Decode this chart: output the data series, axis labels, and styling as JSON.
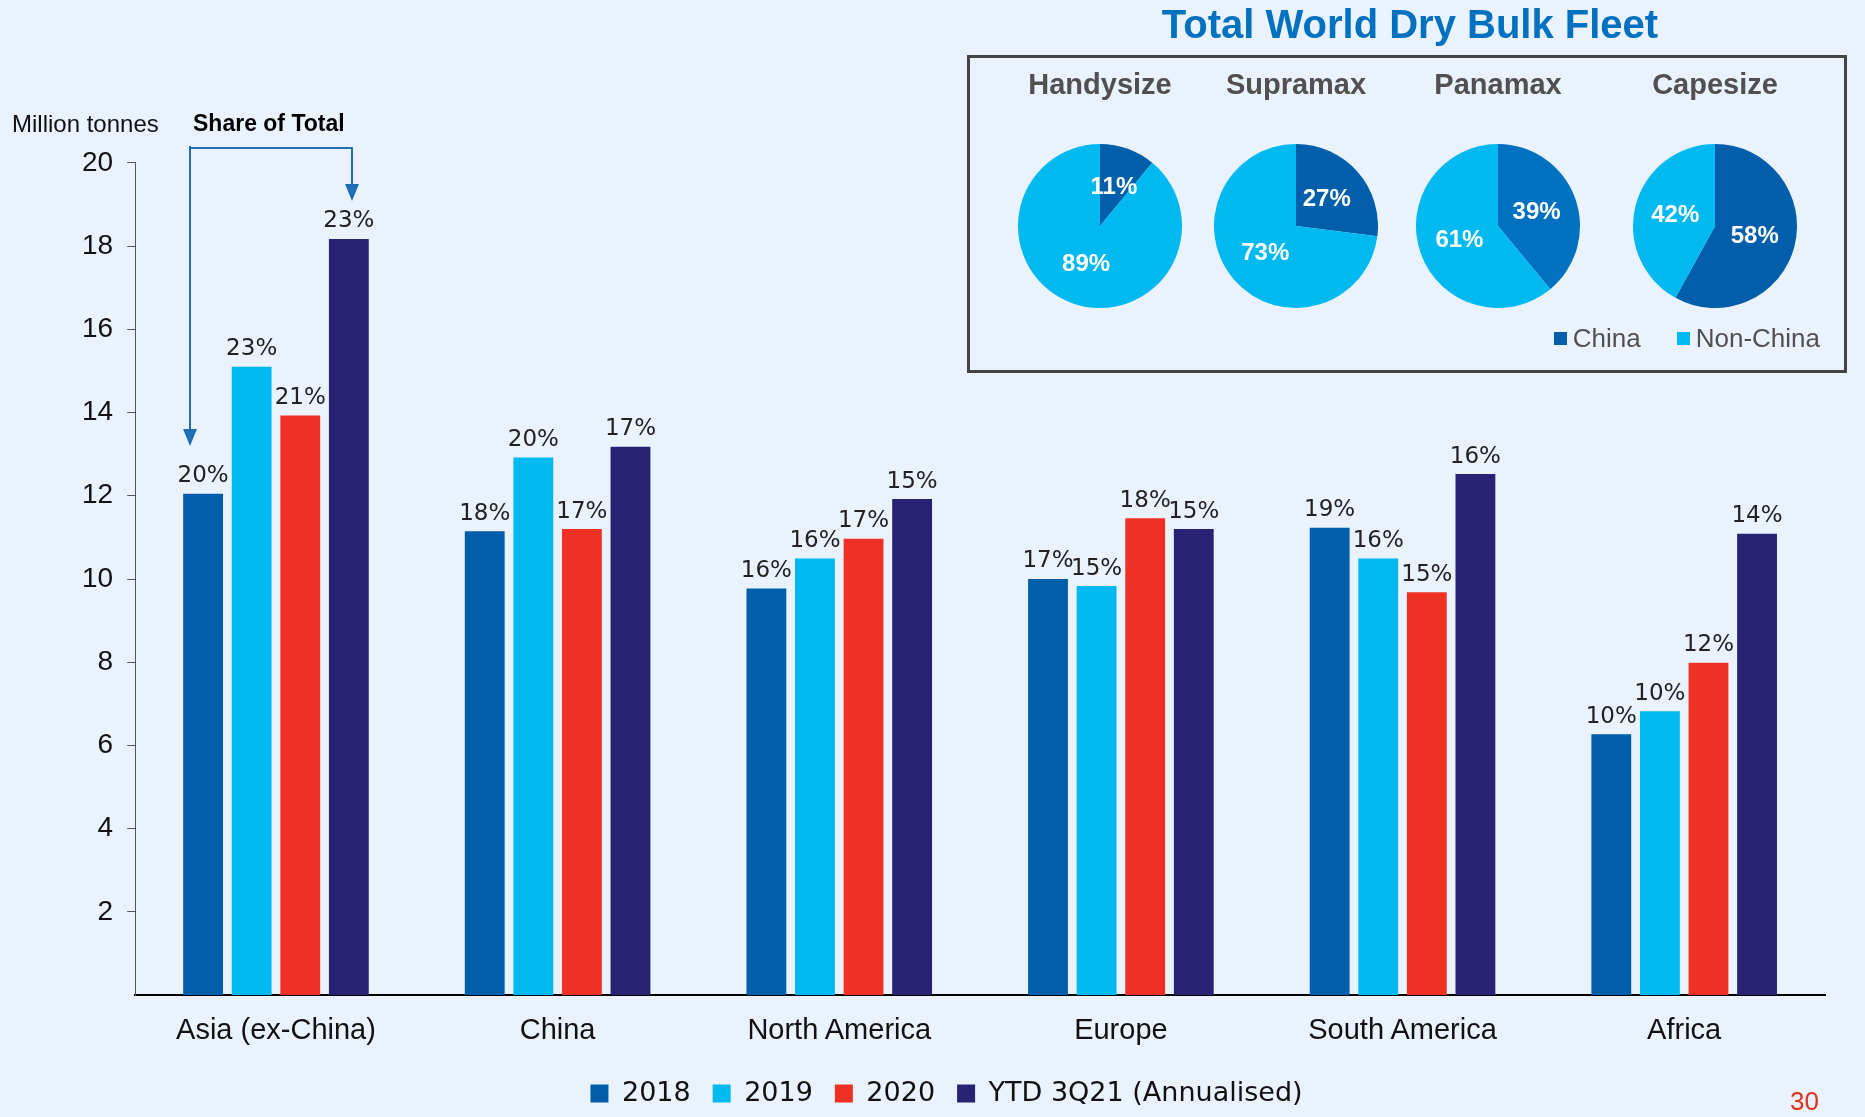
{
  "chart_data": [
    {
      "type": "bar",
      "ylabel": "Million tonnes",
      "categories": [
        "Asia (ex-China)",
        "China",
        "North America",
        "Europe",
        "South America",
        "Africa"
      ],
      "ylim": [
        0,
        20
      ],
      "yticks": [
        2,
        4,
        6,
        8,
        10,
        12,
        14,
        16,
        18,
        20
      ],
      "grid": false,
      "legend": "bottom",
      "series": [
        {
          "name": "2018",
          "color": "#005eab",
          "values": [
            12.05,
            11.15,
            9.77,
            10.0,
            11.23,
            6.27
          ]
        },
        {
          "name": "2019",
          "color": "#00b9f0",
          "values": [
            15.1,
            12.92,
            10.49,
            9.83,
            10.49,
            6.82
          ]
        },
        {
          "name": "2020",
          "color": "#ee3124",
          "values": [
            13.93,
            11.2,
            10.97,
            11.46,
            9.68,
            7.99
          ]
        },
        {
          "name": "YTD 3Q21 (Annualised)",
          "color": "#272274",
          "values": [
            18.17,
            13.18,
            11.92,
            11.2,
            12.52,
            11.09
          ]
        }
      ],
      "annotations": [
        "Share of Total",
        "30",
        "20%",
        "23%",
        "21%",
        "23%",
        "18%",
        "20%",
        "17%",
        "17%",
        "16%",
        "16%",
        "17%",
        "15%",
        "17%",
        "15%",
        "18%",
        "15%",
        "19%",
        "16%",
        "15%",
        "16%",
        "10%",
        "10%",
        "12%",
        "14%"
      ]
    },
    {
      "type": "other",
      "title": "Total World Dry Bulk Fleet"
    },
    {
      "type": "pie",
      "title": "Handysize",
      "categories": [
        "China",
        "Non-China"
      ],
      "values": [
        11,
        89
      ],
      "colors": [
        "#005eab",
        "#00b9f0"
      ],
      "value_labels": [
        "11%",
        "89%"
      ],
      "legend": "bottom right"
    },
    {
      "type": "pie",
      "title": "Supramax",
      "categories": [
        null,
        null
      ],
      "values": [
        27,
        73
      ],
      "colors": [
        "#005eab",
        "#00b9f0"
      ],
      "value_labels": [
        "27%",
        "73%"
      ]
    },
    {
      "type": "pie",
      "title": "Panamax",
      "categories": [
        null,
        null
      ],
      "values": [
        39,
        61
      ],
      "colors": [
        "#0070c0",
        "#00b9f0"
      ],
      "value_labels": [
        "39%",
        "61%"
      ]
    },
    {
      "type": "pie",
      "title": "Capesize",
      "categories": [
        null,
        null
      ],
      "values": [
        58,
        42
      ],
      "colors": [
        "#005eab",
        "#00b9f0"
      ],
      "value_labels": [
        "58%",
        "42%"
      ]
    }
  ]
}
